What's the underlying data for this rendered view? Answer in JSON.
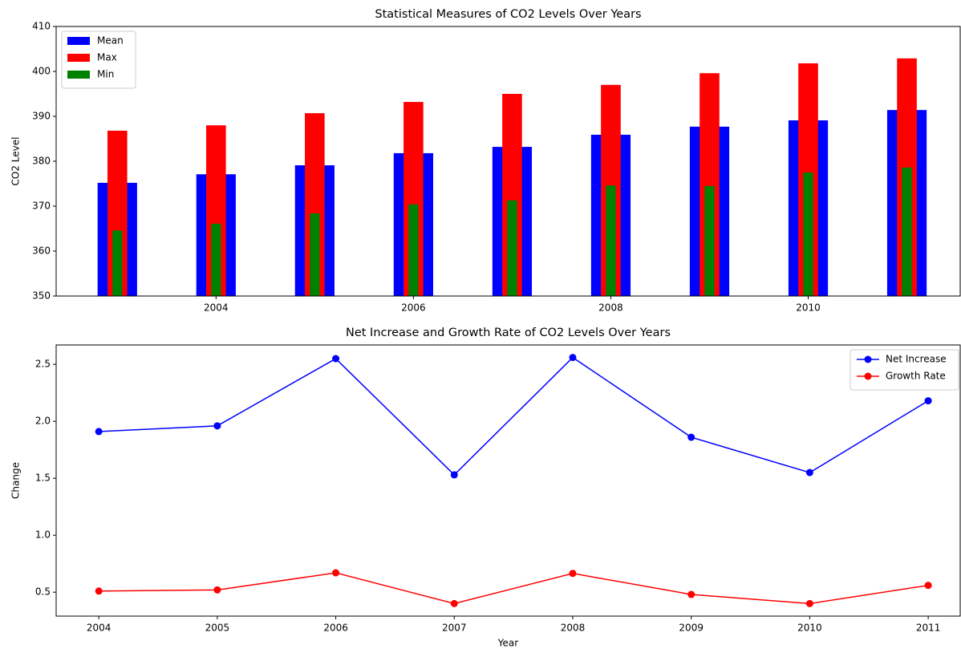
{
  "chart_data": [
    {
      "type": "bar",
      "title": "Statistical Measures of CO2 Levels Over Years",
      "y_label": "CO2 Level",
      "x": [
        2003,
        2004,
        2005,
        2006,
        2007,
        2008,
        2009,
        2010,
        2011
      ],
      "series": [
        {
          "name": "Mean",
          "color": "#0000ff",
          "values": [
            375.2,
            377.1,
            379.1,
            381.8,
            383.2,
            385.9,
            387.7,
            389.1,
            391.4
          ]
        },
        {
          "name": "Max",
          "color": "#ff0000",
          "values": [
            386.8,
            388.0,
            390.7,
            393.2,
            395.0,
            397.0,
            399.6,
            401.8,
            402.9
          ]
        },
        {
          "name": "Min",
          "color": "#008000",
          "values": [
            364.6,
            366.1,
            368.4,
            370.4,
            371.3,
            374.6,
            374.5,
            377.5,
            378.6
          ]
        }
      ],
      "xlim": [
        2002.38,
        2011.54
      ],
      "xticks": [
        2004,
        2006,
        2008,
        2010
      ],
      "ylim": [
        350,
        410
      ],
      "yticks": [
        350,
        360,
        370,
        380,
        390,
        400,
        410
      ],
      "legend": "upper left"
    },
    {
      "type": "line",
      "title": "Net Increase and Growth Rate of CO2 Levels Over Years",
      "x_label": "Year",
      "y_label": "Change",
      "x": [
        2004,
        2005,
        2006,
        2007,
        2008,
        2009,
        2010,
        2011
      ],
      "series": [
        {
          "name": "Net Increase",
          "color": "#0000ff",
          "values": [
            1.91,
            1.96,
            2.55,
            1.53,
            2.56,
            1.86,
            1.55,
            2.18
          ]
        },
        {
          "name": "Growth Rate",
          "color": "#ff0000",
          "values": [
            0.51,
            0.52,
            0.67,
            0.4,
            0.665,
            0.48,
            0.4,
            0.56
          ]
        }
      ],
      "xlim": [
        2003.64,
        2011.27
      ],
      "xticks": [
        2004,
        2005,
        2006,
        2007,
        2008,
        2009,
        2010,
        2011
      ],
      "ylim": [
        0.29,
        2.67
      ],
      "yticks": [
        0.5,
        {
          "value": 1.0,
          "label": "1.0"
        },
        1.5,
        {
          "value": 2.0,
          "label": "2.0"
        },
        2.5
      ],
      "legend": "upper right"
    }
  ]
}
